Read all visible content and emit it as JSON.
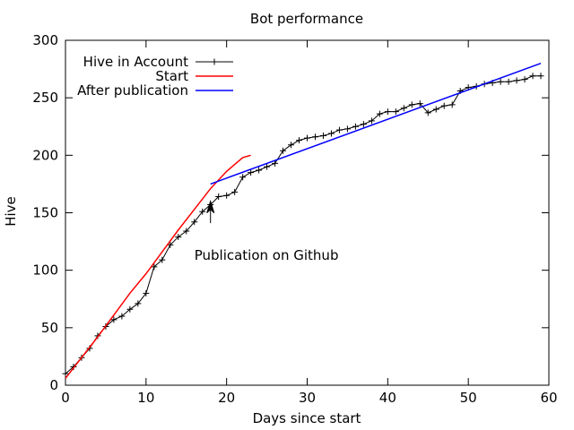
{
  "chart_data": {
    "type": "line",
    "title": "Bot performance",
    "xlabel": "Days since start",
    "ylabel": "Hive",
    "xlim": [
      0,
      60
    ],
    "ylim": [
      0,
      300
    ],
    "x_ticks": [
      0,
      10,
      20,
      30,
      40,
      50,
      60
    ],
    "y_ticks": [
      0,
      50,
      100,
      150,
      200,
      250,
      300
    ],
    "grid": false,
    "legend_position": "top-left",
    "series": [
      {
        "name": "Hive in Account",
        "color": "#000000",
        "marker": "plus",
        "x": [
          0,
          1,
          2,
          3,
          4,
          5,
          6,
          7,
          8,
          9,
          10,
          11,
          12,
          13,
          14,
          15,
          16,
          17,
          18,
          19,
          20,
          21,
          22,
          23,
          24,
          25,
          26,
          27,
          28,
          29,
          30,
          31,
          32,
          33,
          34,
          35,
          36,
          37,
          38,
          39,
          40,
          41,
          42,
          43,
          44,
          45,
          46,
          47,
          48,
          49,
          50,
          51,
          52,
          53,
          54,
          55,
          56,
          57,
          58,
          59
        ],
        "y": [
          10,
          16,
          24,
          32,
          43,
          51,
          57,
          60,
          66,
          71,
          80,
          103,
          109,
          122,
          129,
          134,
          142,
          151,
          157,
          164,
          165,
          168,
          181,
          185,
          187,
          190,
          193,
          204,
          209,
          213,
          215,
          216,
          217,
          219,
          222,
          223,
          225,
          227,
          230,
          236,
          238,
          238,
          241,
          244,
          245,
          237,
          240,
          243,
          244,
          256,
          259,
          260,
          262,
          263,
          264,
          264,
          265,
          266,
          269,
          269
        ]
      },
      {
        "name": "Start",
        "color": "#ff0000",
        "x": [
          0,
          2,
          4,
          6,
          8,
          10,
          12,
          14,
          16,
          18,
          20,
          22,
          23
        ],
        "y": [
          6,
          24,
          42,
          61,
          80,
          97,
          116,
          135,
          153,
          171,
          186,
          198,
          200
        ]
      },
      {
        "name": "After publication",
        "color": "#0000ff",
        "x": [
          18,
          59
        ],
        "y": [
          175,
          280
        ]
      }
    ],
    "annotations": [
      {
        "text": "Publication on Github",
        "arrow_from": [
          18,
          141
        ],
        "arrow_to": [
          18,
          160
        ],
        "text_at": [
          16,
          109
        ]
      }
    ]
  }
}
